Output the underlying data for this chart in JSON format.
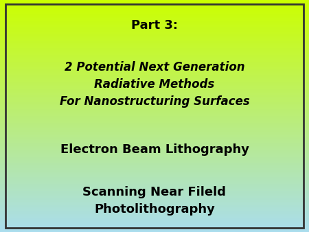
{
  "title_line": "Part 3:",
  "subtitle_lines": [
    "2 Potential Next Generation",
    "Radiative Methods",
    "For Nanostructuring Surfaces"
  ],
  "item1": "Electron Beam Lithography",
  "item2_lines": [
    "Scanning Near Fileld",
    "Photolithography"
  ],
  "bg_color_top": "#ccff00",
  "bg_color_bottom": "#aaddee",
  "text_color": "#000000",
  "border_color": "#333333",
  "title_fontsize": 13,
  "subtitle_fontsize": 12,
  "item_fontsize": 13,
  "figsize": [
    4.5,
    3.38
  ],
  "dpi": 100
}
